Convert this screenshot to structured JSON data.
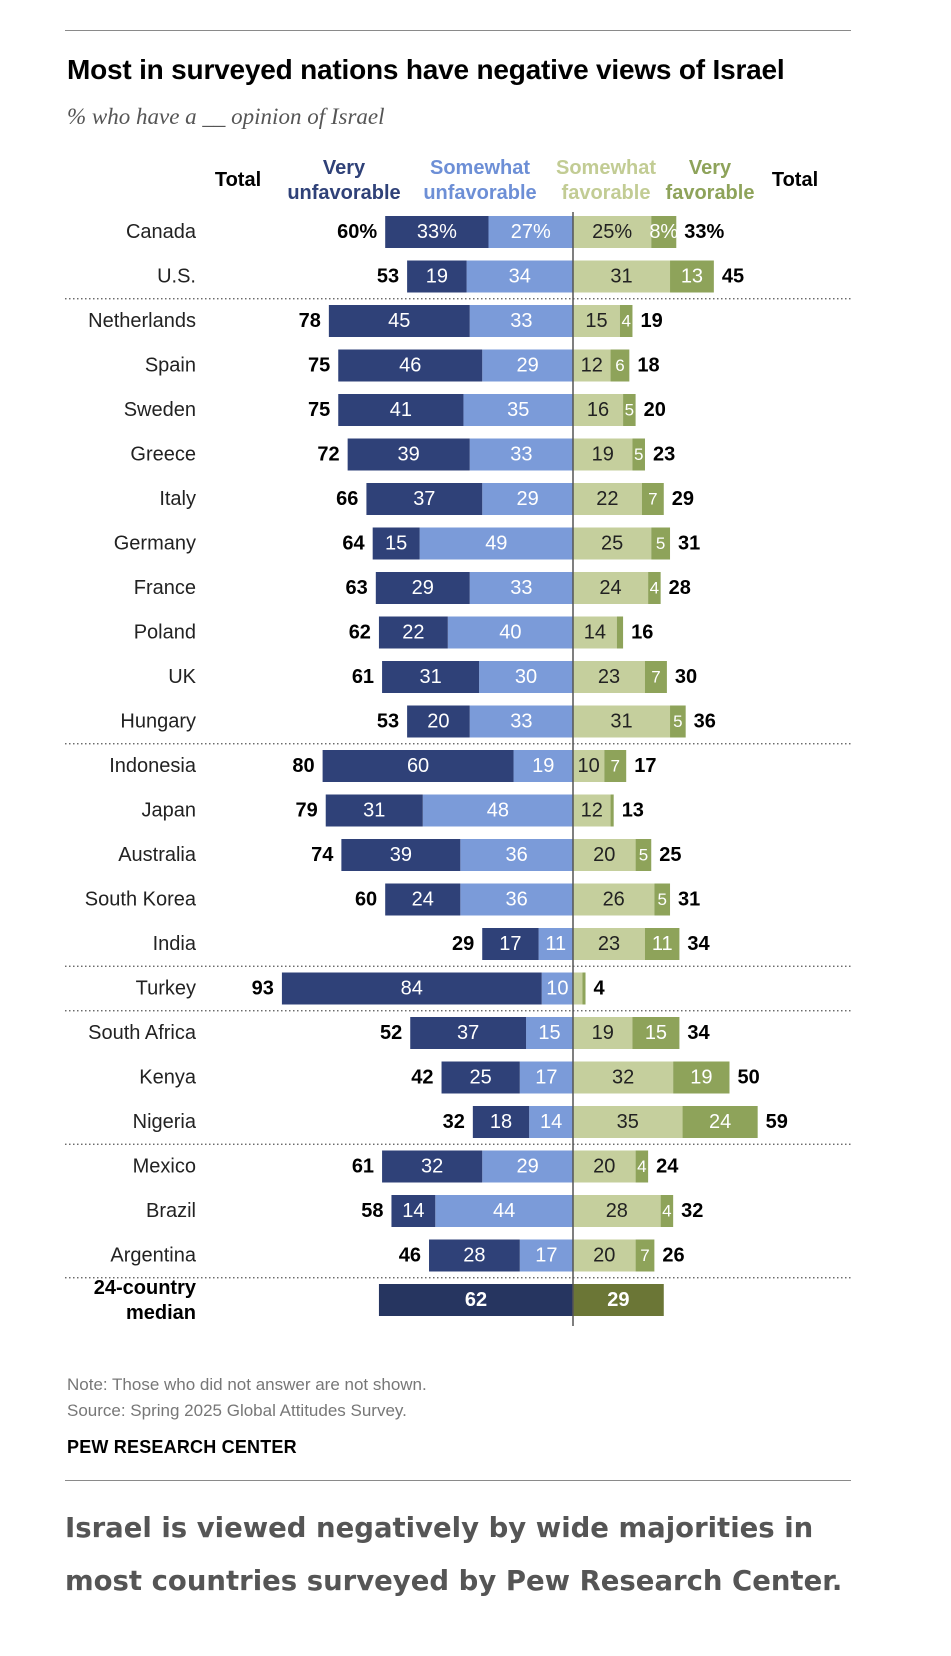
{
  "title": "Most in surveyed nations have negative views of Israel",
  "subtitle": "% who have a __ opinion of Israel",
  "note": "Note: Those who did not answer are not shown.",
  "source": "Source: Spring 2025 Global Attitudes Survey.",
  "org": "PEW RESEARCH CENTER",
  "caption_lines": [
    "Israel is viewed negatively by wide majorities in",
    "most countries surveyed by Pew Research Center."
  ],
  "colors": {
    "very_unfavorable": "#2f4178",
    "somewhat_unfavorable": "#7b9bd9",
    "somewhat_favorable": "#c5cf9d",
    "very_favorable": "#8ea35a",
    "median_unfavorable": "#263560",
    "median_favorable": "#6b7636"
  },
  "chart_data": {
    "type": "bar",
    "orientation": "horizontal-diverging",
    "stacked": true,
    "columns": {
      "total_left": "Total",
      "very_unfavorable": [
        "Very",
        "unfavorable"
      ],
      "somewhat_unfavorable": [
        "Somewhat",
        "unfavorable"
      ],
      "somewhat_favorable": [
        "Somewhat",
        "favorable"
      ],
      "very_favorable": [
        "Very",
        "favorable"
      ],
      "total_right": "Total"
    },
    "groups": [
      [
        {
          "country": "Canada",
          "unfav_total": 60,
          "very_unfav": 33,
          "somewhat_unfav": 27,
          "somewhat_fav": 25,
          "very_fav": 8,
          "fav_total": 33,
          "percent": true
        },
        {
          "country": "U.S.",
          "unfav_total": 53,
          "very_unfav": 19,
          "somewhat_unfav": 34,
          "somewhat_fav": 31,
          "very_fav": 13,
          "fav_total": 45
        }
      ],
      [
        {
          "country": "Netherlands",
          "unfav_total": 78,
          "very_unfav": 45,
          "somewhat_unfav": 33,
          "somewhat_fav": 15,
          "very_fav": 4,
          "fav_total": 19
        },
        {
          "country": "Spain",
          "unfav_total": 75,
          "very_unfav": 46,
          "somewhat_unfav": 29,
          "somewhat_fav": 12,
          "very_fav": 6,
          "fav_total": 18
        },
        {
          "country": "Sweden",
          "unfav_total": 75,
          "very_unfav": 41,
          "somewhat_unfav": 35,
          "somewhat_fav": 16,
          "very_fav": 5,
          "fav_total": 20
        },
        {
          "country": "Greece",
          "unfav_total": 72,
          "very_unfav": 39,
          "somewhat_unfav": 33,
          "somewhat_fav": 19,
          "very_fav": 5,
          "fav_total": 23
        },
        {
          "country": "Italy",
          "unfav_total": 66,
          "very_unfav": 37,
          "somewhat_unfav": 29,
          "somewhat_fav": 22,
          "very_fav": 7,
          "fav_total": 29
        },
        {
          "country": "Germany",
          "unfav_total": 64,
          "very_unfav": 15,
          "somewhat_unfav": 49,
          "somewhat_fav": 25,
          "very_fav": 5,
          "fav_total": 31
        },
        {
          "country": "France",
          "unfav_total": 63,
          "very_unfav": 29,
          "somewhat_unfav": 33,
          "somewhat_fav": 24,
          "very_fav": 4,
          "fav_total": 28
        },
        {
          "country": "Poland",
          "unfav_total": 62,
          "very_unfav": 22,
          "somewhat_unfav": 40,
          "somewhat_fav": 14,
          "very_fav": 2,
          "fav_total": 16,
          "hide_very_fav_label": true
        },
        {
          "country": "UK",
          "unfav_total": 61,
          "very_unfav": 31,
          "somewhat_unfav": 30,
          "somewhat_fav": 23,
          "very_fav": 7,
          "fav_total": 30
        },
        {
          "country": "Hungary",
          "unfav_total": 53,
          "very_unfav": 20,
          "somewhat_unfav": 33,
          "somewhat_fav": 31,
          "very_fav": 5,
          "fav_total": 36
        }
      ],
      [
        {
          "country": "Indonesia",
          "unfav_total": 80,
          "very_unfav": 60,
          "somewhat_unfav": 19,
          "somewhat_fav": 10,
          "very_fav": 7,
          "fav_total": 17
        },
        {
          "country": "Japan",
          "unfav_total": 79,
          "very_unfav": 31,
          "somewhat_unfav": 48,
          "somewhat_fav": 12,
          "very_fav": 1,
          "fav_total": 13,
          "hide_very_fav_label": true
        },
        {
          "country": "Australia",
          "unfav_total": 74,
          "very_unfav": 39,
          "somewhat_unfav": 36,
          "somewhat_fav": 20,
          "very_fav": 5,
          "fav_total": 25
        },
        {
          "country": "South Korea",
          "unfav_total": 60,
          "very_unfav": 24,
          "somewhat_unfav": 36,
          "somewhat_fav": 26,
          "very_fav": 5,
          "fav_total": 31
        },
        {
          "country": "India",
          "unfav_total": 29,
          "very_unfav": 17,
          "somewhat_unfav": 11,
          "somewhat_fav": 23,
          "very_fav": 11,
          "fav_total": 34
        }
      ],
      [
        {
          "country": "Turkey",
          "unfav_total": 93,
          "very_unfav": 84,
          "somewhat_unfav": 10,
          "somewhat_fav": 3,
          "very_fav": 1,
          "fav_total": 4,
          "hide_somewhat_fav_label": true,
          "hide_very_fav_label": true
        }
      ],
      [
        {
          "country": "South Africa",
          "unfav_total": 52,
          "very_unfav": 37,
          "somewhat_unfav": 15,
          "somewhat_fav": 19,
          "very_fav": 15,
          "fav_total": 34
        },
        {
          "country": "Kenya",
          "unfav_total": 42,
          "very_unfav": 25,
          "somewhat_unfav": 17,
          "somewhat_fav": 32,
          "very_fav": 19,
          "fav_total": 50
        },
        {
          "country": "Nigeria",
          "unfav_total": 32,
          "very_unfav": 18,
          "somewhat_unfav": 14,
          "somewhat_fav": 35,
          "very_fav": 24,
          "fav_total": 59
        }
      ],
      [
        {
          "country": "Mexico",
          "unfav_total": 61,
          "very_unfav": 32,
          "somewhat_unfav": 29,
          "somewhat_fav": 20,
          "very_fav": 4,
          "fav_total": 24
        },
        {
          "country": "Brazil",
          "unfav_total": 58,
          "very_unfav": 14,
          "somewhat_unfav": 44,
          "somewhat_fav": 28,
          "very_fav": 4,
          "fav_total": 32
        },
        {
          "country": "Argentina",
          "unfav_total": 46,
          "very_unfav": 28,
          "somewhat_unfav": 17,
          "somewhat_fav": 20,
          "very_fav": 7,
          "fav_total": 26
        }
      ]
    ],
    "median": {
      "label_lines": [
        "24-country",
        "median"
      ],
      "unfav": 62,
      "fav": 29
    }
  }
}
